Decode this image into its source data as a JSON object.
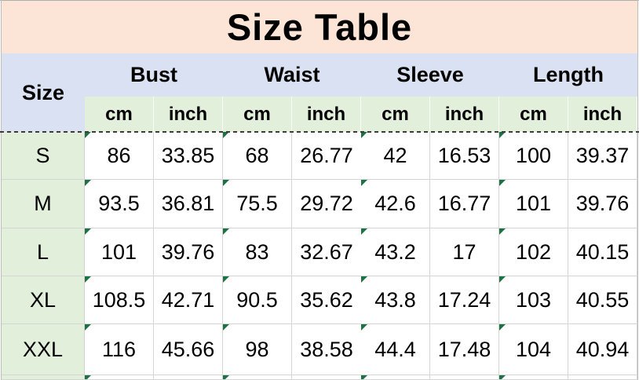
{
  "title": "Size Table",
  "table": {
    "size_header": "Size",
    "groups": [
      {
        "label": "Bust"
      },
      {
        "label": "Waist"
      },
      {
        "label": "Sleeve"
      },
      {
        "label": "Length"
      }
    ],
    "units": [
      "cm",
      "inch"
    ],
    "rows": [
      {
        "size": "S",
        "values": [
          "86",
          "33.85",
          "68",
          "26.77",
          "42",
          "16.53",
          "100",
          "39.37"
        ]
      },
      {
        "size": "M",
        "values": [
          "93.5",
          "36.81",
          "75.5",
          "29.72",
          "42.6",
          "16.77",
          "101",
          "39.76"
        ]
      },
      {
        "size": "L",
        "values": [
          "101",
          "39.76",
          "83",
          "32.67",
          "43.2",
          "17",
          "102",
          "40.15"
        ]
      },
      {
        "size": "XL",
        "values": [
          "108.5",
          "42.71",
          "90.5",
          "35.62",
          "43.8",
          "17.24",
          "103",
          "40.55"
        ]
      },
      {
        "size": "XXL",
        "values": [
          "116",
          "45.66",
          "98",
          "38.58",
          "44.4",
          "17.48",
          "104",
          "40.94"
        ]
      }
    ]
  },
  "colors": {
    "title_bg": "#fce4d6",
    "group_header_bg": "#d9e1f2",
    "unit_header_bg": "#e2efda",
    "size_column_bg": "#e2efda",
    "cell_bg": "#ffffff",
    "grid_line": "#d4d4d4",
    "text_flag_triangle": "#1e7145",
    "page_break_dash": "#3c3c3c",
    "text": "#000000"
  }
}
